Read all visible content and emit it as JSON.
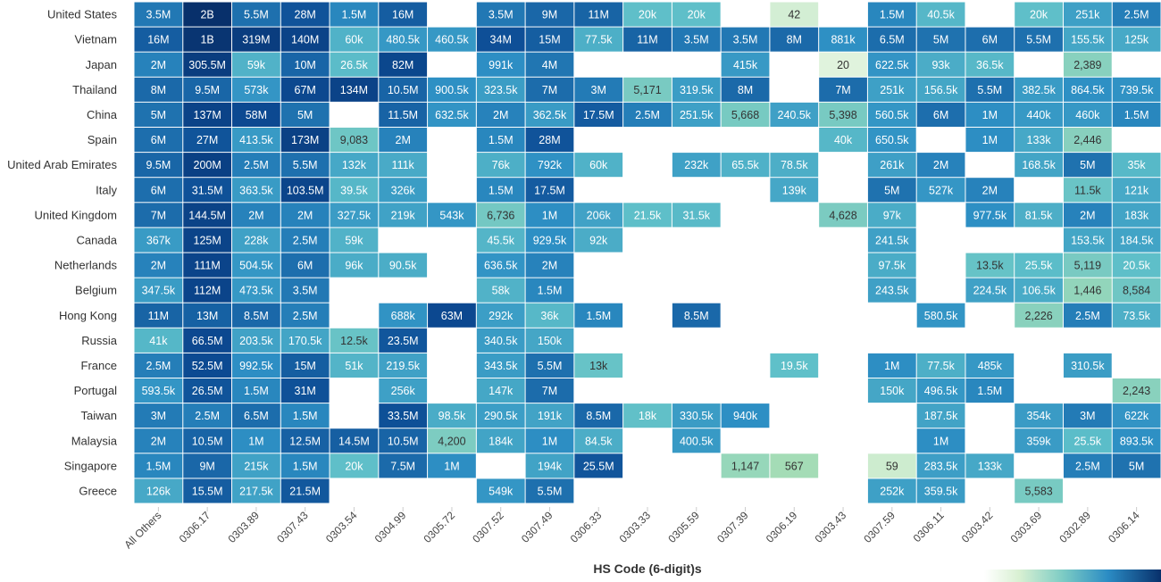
{
  "chart_data": {
    "type": "heatmap",
    "xlabel": "HS Code (6-digit)s",
    "ylabel": "",
    "columns": [
      "All Others",
      "0306.17",
      "0303.89",
      "0307.43",
      "0303.54",
      "0304.99",
      "0305.72",
      "0307.52",
      "0307.49",
      "0306.33",
      "0303.33",
      "0305.59",
      "0307.39",
      "0306.19",
      "0303.43",
      "0307.59",
      "0306.11",
      "0303.42",
      "0303.69",
      "0302.89",
      "0306.14"
    ],
    "rows": [
      "United States",
      "Vietnam",
      "Japan",
      "Thailand",
      "China",
      "Spain",
      "United Arab Emirates",
      "Italy",
      "United Kingdom",
      "Canada",
      "Netherlands",
      "Belgium",
      "Hong Kong",
      "Russia",
      "France",
      "Portugal",
      "Taiwan",
      "Malaysia",
      "Singapore",
      "Greece"
    ],
    "cells": [
      [
        "3.5M",
        "2B",
        "5.5M",
        "28M",
        "1.5M",
        "16M",
        "",
        "3.5M",
        "9M",
        "11M",
        "20k",
        "20k",
        "",
        "42",
        "",
        "1.5M",
        "40.5k",
        "",
        "20k",
        "251k",
        "2.5M"
      ],
      [
        "16M",
        "1B",
        "319M",
        "140M",
        "60k",
        "480.5k",
        "460.5k",
        "34M",
        "15M",
        "77.5k",
        "11M",
        "3.5M",
        "3.5M",
        "8M",
        "881k",
        "6.5M",
        "5M",
        "6M",
        "5.5M",
        "155.5k",
        "125k"
      ],
      [
        "2M",
        "305.5M",
        "59k",
        "10M",
        "26.5k",
        "82M",
        "",
        "991k",
        "4M",
        "",
        "",
        "",
        "415k",
        "",
        "20",
        "622.5k",
        "93k",
        "36.5k",
        "",
        "2,389",
        ""
      ],
      [
        "8M",
        "9.5M",
        "573k",
        "67M",
        "134M",
        "10.5M",
        "900.5k",
        "323.5k",
        "7M",
        "3M",
        "5,171",
        "319.5k",
        "8M",
        "",
        "7M",
        "251k",
        "156.5k",
        "5.5M",
        "382.5k",
        "864.5k",
        "739.5k"
      ],
      [
        "5M",
        "137M",
        "58M",
        "5M",
        "",
        "11.5M",
        "632.5k",
        "2M",
        "362.5k",
        "17.5M",
        "2.5M",
        "251.5k",
        "5,668",
        "240.5k",
        "5,398",
        "560.5k",
        "6M",
        "1M",
        "440k",
        "460k",
        "1.5M"
      ],
      [
        "6M",
        "27M",
        "413.5k",
        "173M",
        "9,083",
        "2M",
        "",
        "1.5M",
        "28M",
        "",
        "",
        "",
        "",
        "",
        "40k",
        "650.5k",
        "",
        "1M",
        "133k",
        "2,446",
        ""
      ],
      [
        "9.5M",
        "200M",
        "2.5M",
        "5.5M",
        "132k",
        "111k",
        "",
        "76k",
        "792k",
        "60k",
        "",
        "232k",
        "65.5k",
        "78.5k",
        "",
        "261k",
        "2M",
        "",
        "168.5k",
        "5M",
        "35k"
      ],
      [
        "6M",
        "31.5M",
        "363.5k",
        "103.5M",
        "39.5k",
        "326k",
        "",
        "1.5M",
        "17.5M",
        "",
        "",
        "",
        "",
        "139k",
        "",
        "5M",
        "527k",
        "2M",
        "",
        "11.5k",
        "121k"
      ],
      [
        "7M",
        "144.5M",
        "2M",
        "2M",
        "327.5k",
        "219k",
        "543k",
        "6,736",
        "1M",
        "206k",
        "21.5k",
        "31.5k",
        "",
        "",
        "4,628",
        "97k",
        "",
        "977.5k",
        "81.5k",
        "2M",
        "183k"
      ],
      [
        "367k",
        "125M",
        "228k",
        "2.5M",
        "59k",
        "",
        "",
        "45.5k",
        "929.5k",
        "92k",
        "",
        "",
        "",
        "",
        "",
        "241.5k",
        "",
        "",
        "",
        "153.5k",
        "184.5k"
      ],
      [
        "2M",
        "111M",
        "504.5k",
        "6M",
        "96k",
        "90.5k",
        "",
        "636.5k",
        "2M",
        "",
        "",
        "",
        "",
        "",
        "",
        "97.5k",
        "",
        "13.5k",
        "25.5k",
        "5,119",
        "20.5k"
      ],
      [
        "347.5k",
        "112M",
        "473.5k",
        "3.5M",
        "",
        "",
        "",
        "58k",
        "1.5M",
        "",
        "",
        "",
        "",
        "",
        "",
        "243.5k",
        "",
        "224.5k",
        "106.5k",
        "1,446",
        "8,584"
      ],
      [
        "11M",
        "13M",
        "8.5M",
        "2.5M",
        "",
        "688k",
        "63M",
        "292k",
        "36k",
        "1.5M",
        "",
        "8.5M",
        "",
        "",
        "",
        "",
        "580.5k",
        "",
        "2,226",
        "2.5M",
        "73.5k"
      ],
      [
        "41k",
        "66.5M",
        "203.5k",
        "170.5k",
        "12.5k",
        "23.5M",
        "",
        "340.5k",
        "150k",
        "",
        "",
        "",
        "",
        "",
        "",
        "",
        "",
        "",
        "",
        "",
        ""
      ],
      [
        "2.5M",
        "52.5M",
        "992.5k",
        "15M",
        "51k",
        "219.5k",
        "",
        "343.5k",
        "5.5M",
        "13k",
        "",
        "",
        "",
        "19.5k",
        "",
        "1M",
        "77.5k",
        "485k",
        "",
        "310.5k",
        ""
      ],
      [
        "593.5k",
        "26.5M",
        "1.5M",
        "31M",
        "",
        "256k",
        "",
        "147k",
        "7M",
        "",
        "",
        "",
        "",
        "",
        "",
        "150k",
        "496.5k",
        "1.5M",
        "",
        "",
        "2,243"
      ],
      [
        "3M",
        "2.5M",
        "6.5M",
        "1.5M",
        "",
        "33.5M",
        "98.5k",
        "290.5k",
        "191k",
        "8.5M",
        "18k",
        "330.5k",
        "940k",
        "",
        "",
        "",
        "187.5k",
        "",
        "354k",
        "3M",
        "622k"
      ],
      [
        "2M",
        "10.5M",
        "1M",
        "12.5M",
        "14.5M",
        "10.5M",
        "4,200",
        "184k",
        "1M",
        "84.5k",
        "",
        "400.5k",
        "",
        "",
        "",
        "",
        "1M",
        "",
        "359k",
        "25.5k",
        "893.5k"
      ],
      [
        "1.5M",
        "9M",
        "215k",
        "1.5M",
        "20k",
        "7.5M",
        "1M",
        "",
        "194k",
        "25.5M",
        "",
        "",
        "1,147",
        "567",
        "",
        "59",
        "283.5k",
        "133k",
        "",
        "2.5M",
        "5M"
      ],
      [
        "126k",
        "15.5M",
        "217.5k",
        "21.5M",
        "",
        "",
        "",
        "549k",
        "5.5M",
        "",
        "",
        "",
        "",
        "",
        "",
        "252k",
        "359.5k",
        "",
        "5,583",
        "",
        ""
      ]
    ],
    "color_scale": [
      "#edf8e6",
      "#a8deb5",
      "#5ebfc9",
      "#2d8fc4",
      "#0c4b94",
      "#08306b"
    ],
    "legend": "bottom-right gradient"
  }
}
